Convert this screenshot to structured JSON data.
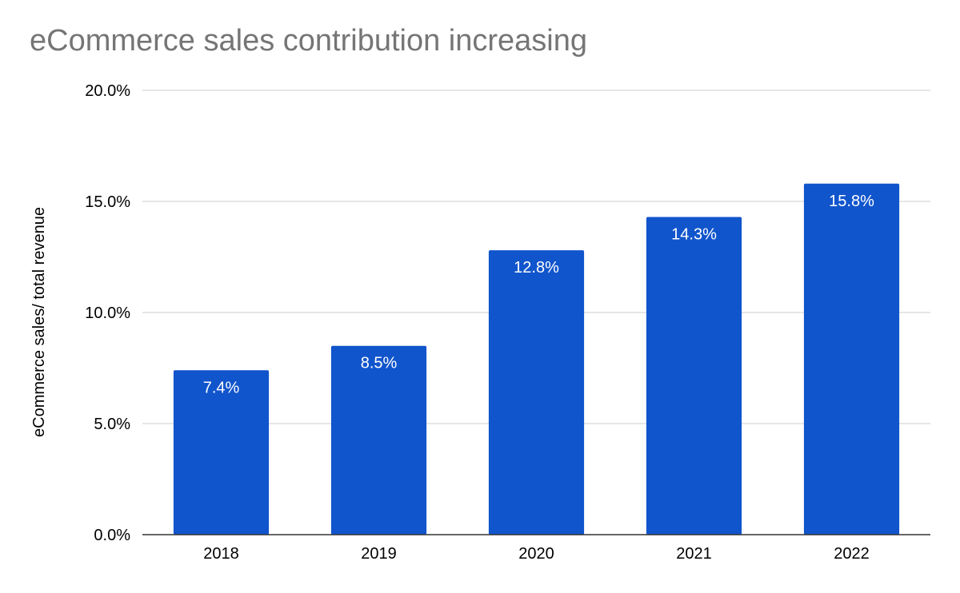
{
  "chart_data": {
    "type": "bar",
    "title": "eCommerce sales contribution increasing",
    "xlabel": "",
    "ylabel": "eCommerce sales/ total revenue",
    "categories": [
      "2018",
      "2019",
      "2020",
      "2021",
      "2022"
    ],
    "values": [
      7.4,
      8.5,
      12.8,
      14.3,
      15.8
    ],
    "data_labels": [
      "7.4%",
      "8.5%",
      "12.8%",
      "14.3%",
      "15.8%"
    ],
    "ylim": [
      0,
      20
    ],
    "yticks": [
      0,
      5,
      10,
      15,
      20
    ],
    "ytick_labels": [
      "0.0%",
      "5.0%",
      "10.0%",
      "15.0%",
      "20.0%"
    ],
    "grid": true,
    "legend": "none",
    "colors": {
      "bar": "#1155cc",
      "title": "#757575",
      "grid": "#cccccc",
      "axis": "#333333"
    }
  }
}
